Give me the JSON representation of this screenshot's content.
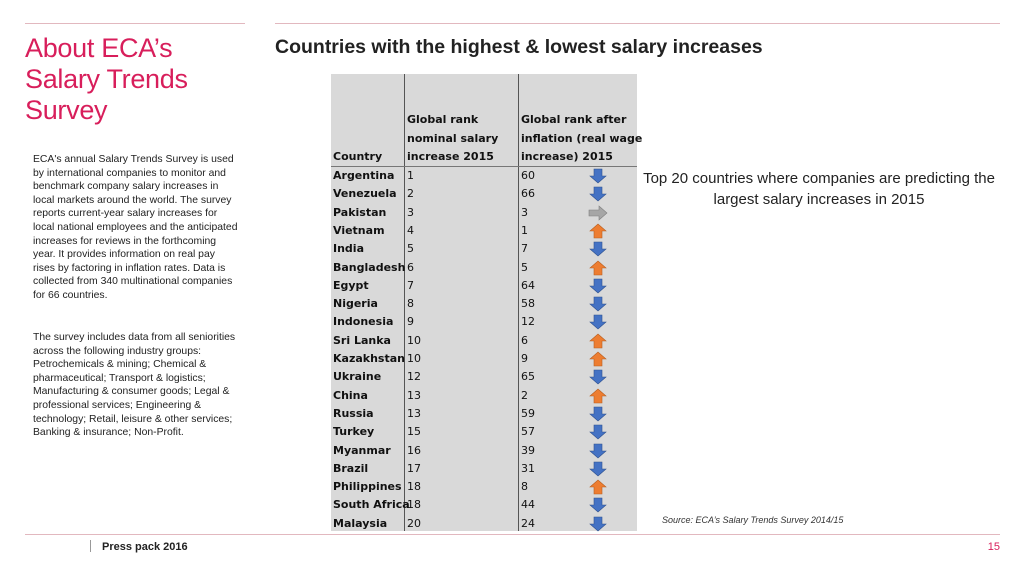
{
  "left": {
    "title_lines": [
      "About ECA’s",
      "Salary Trends",
      "Survey"
    ],
    "paragraph_1": "ECA's annual Salary Trends Survey is used by international companies to monitor and benchmark company salary increases in local markets around the world. The survey reports current-year salary increases for local national employees and the anticipated increases for reviews in the forthcoming year. It provides information on real pay rises by factoring in inflation rates. Data is collected from 340 multinational companies for 66 countries.",
    "paragraph_2": "The survey includes data from all seniorities across the following industry groups: Petrochemicals & mining; Chemical & pharmaceutical; Transport & logistics; Manufacturing & consumer goods; Legal & professional services; Engineering & technology; Retail, leisure & other services; Banking & insurance; Non-Profit."
  },
  "main": {
    "heading": "Countries with the highest & lowest salary increases",
    "side_text": "Top 20 countries where companies are predicting the largest salary increases in 2015",
    "source": "Source: ECA’s Salary Trends Survey 2014/15"
  },
  "table": {
    "header_country": "Country",
    "header_rank_lines": [
      "Global rank",
      "nominal salary",
      "increase 2015"
    ],
    "header_after_lines": [
      "Global rank after",
      "inflation (real wage",
      "increase) 2015"
    ],
    "rows": [
      {
        "country": "Argentina",
        "rank": "1",
        "after": "60",
        "dir": "down"
      },
      {
        "country": "Venezuela",
        "rank": "2",
        "after": "66",
        "dir": "down"
      },
      {
        "country": "Pakistan",
        "rank": "3",
        "after": "3",
        "dir": "same"
      },
      {
        "country": "Vietnam",
        "rank": "4",
        "after": "1",
        "dir": "up"
      },
      {
        "country": "India",
        "rank": "5",
        "after": "7",
        "dir": "down"
      },
      {
        "country": "Bangladesh",
        "rank": "6",
        "after": "5",
        "dir": "up"
      },
      {
        "country": "Egypt",
        "rank": "7",
        "after": "64",
        "dir": "down"
      },
      {
        "country": "Nigeria",
        "rank": "8",
        "after": "58",
        "dir": "down"
      },
      {
        "country": "Indonesia",
        "rank": "9",
        "after": "12",
        "dir": "down"
      },
      {
        "country": "Sri Lanka",
        "rank": "10",
        "after": "6",
        "dir": "up"
      },
      {
        "country": "Kazakhstan",
        "rank": "10",
        "after": "9",
        "dir": "up"
      },
      {
        "country": "Ukraine",
        "rank": "12",
        "after": "65",
        "dir": "down"
      },
      {
        "country": "China",
        "rank": "13",
        "after": "2",
        "dir": "up"
      },
      {
        "country": "Russia",
        "rank": "13",
        "after": "59",
        "dir": "down"
      },
      {
        "country": "Turkey",
        "rank": "15",
        "after": "57",
        "dir": "down"
      },
      {
        "country": "Myanmar",
        "rank": "16",
        "after": "39",
        "dir": "down"
      },
      {
        "country": "Brazil",
        "rank": "17",
        "after": "31",
        "dir": "down"
      },
      {
        "country": "Philippines",
        "rank": "18",
        "after": "8",
        "dir": "up"
      },
      {
        "country": "South Africa",
        "rank": "18",
        "after": "44",
        "dir": "down"
      },
      {
        "country": "Malaysia",
        "rank": "20",
        "after": "24",
        "dir": "down"
      }
    ],
    "colors": {
      "down": "#4472c4",
      "up": "#ed7d31",
      "same": "#a6a6a6",
      "background": "#d9d9d9"
    }
  },
  "footer": {
    "label": "Press pack 2016",
    "page_number": "15"
  }
}
